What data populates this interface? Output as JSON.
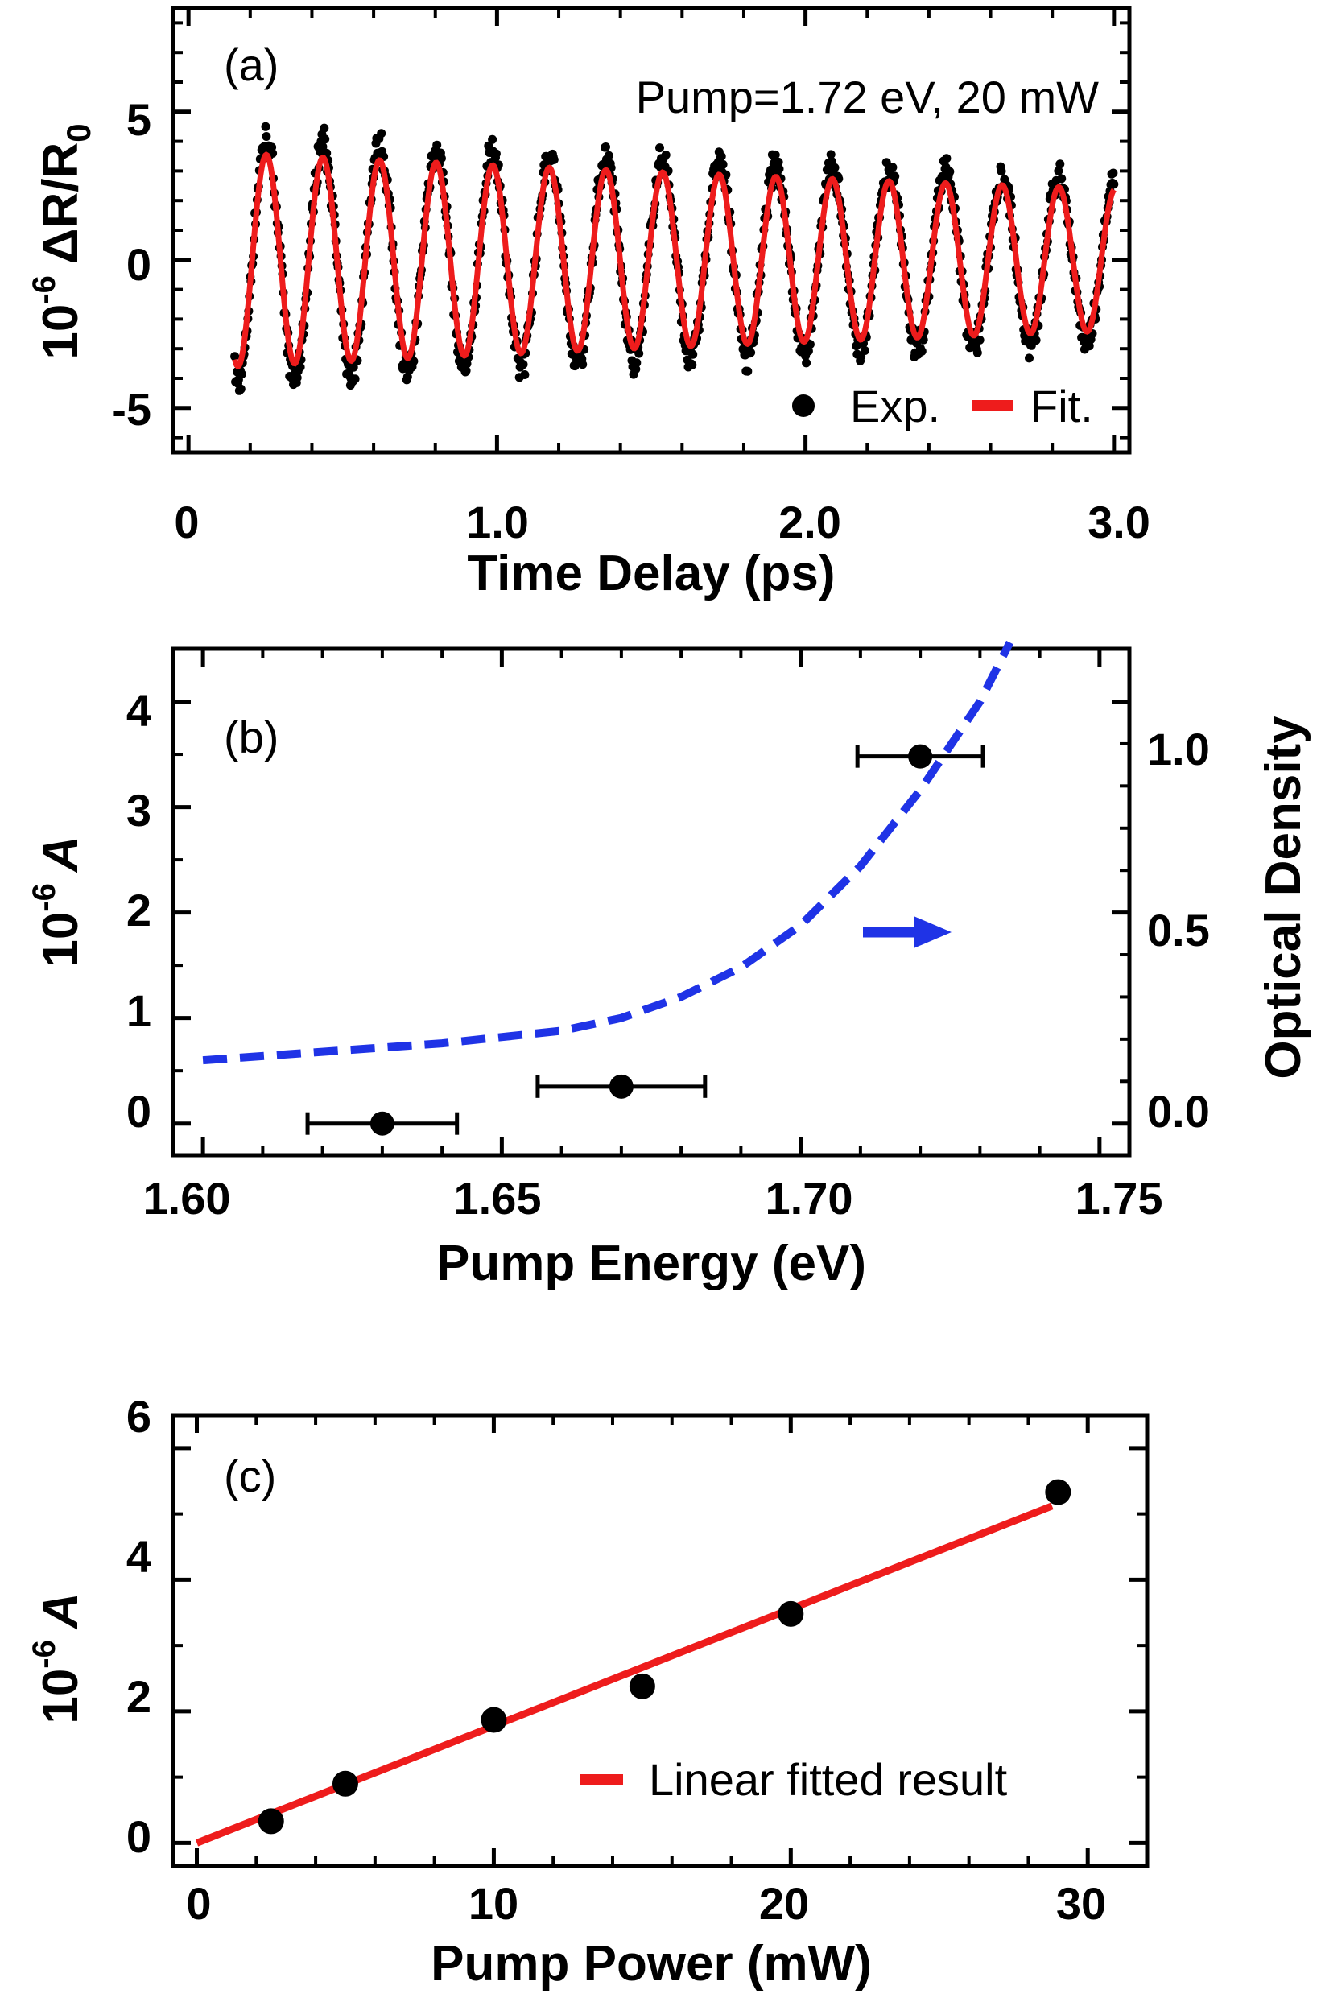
{
  "colors": {
    "exp": "#000000",
    "fit": "#ee1c1c",
    "od": "#1f33e6",
    "axis": "#000000"
  },
  "chart_data": [
    {
      "panel": "(a)",
      "type": "line",
      "xlabel": "Time Delay (ps)",
      "ylabel_base": "10",
      "ylabel_exp": "-6",
      "ylabel_main": "ΔR/R",
      "ylabel_sub": "0",
      "xlim": [
        -0.05,
        3.05
      ],
      "ylim": [
        -6.5,
        8.5
      ],
      "xticks": [
        0,
        1.0,
        2.0,
        3.0
      ],
      "xtick_labels": [
        "0",
        "1.0",
        "2.0",
        "3.0"
      ],
      "yticks": [
        -5,
        0,
        5
      ],
      "ytick_labels": [
        "-5",
        "0",
        "5"
      ],
      "annotation": "Pump=1.72 eV, 20 mW",
      "legend": {
        "placement": "bottom-right",
        "entries": [
          "Exp.",
          "Fit."
        ]
      },
      "series": [
        {
          "name": "Exp.",
          "kind": "scatter",
          "x_range": [
            0.15,
            3.0
          ],
          "model": {
            "amplitude": 3.6,
            "decay_ps": 7.0,
            "frequency_thz": 5.45,
            "phase_deg": -45
          }
        },
        {
          "name": "Fit.",
          "kind": "line",
          "x_range": [
            0.15,
            3.0
          ],
          "model": {
            "amplitude": 3.6,
            "decay_ps": 7.0,
            "frequency_thz": 5.45,
            "phase_deg": -45
          }
        }
      ]
    },
    {
      "panel": "(b)",
      "type": "scatter",
      "xlabel": "Pump Energy (eV)",
      "ylabel_base": "10",
      "ylabel_exp": "-6",
      "ylabel_main": "A",
      "y2label": "Optical Density",
      "xlim": [
        1.595,
        1.755
      ],
      "ylim": [
        -0.3,
        4.5
      ],
      "y2lim": [
        -0.075,
        1.125
      ],
      "xticks": [
        1.6,
        1.65,
        1.7,
        1.75
      ],
      "xtick_labels": [
        "1.60",
        "1.65",
        "1.70",
        "1.75"
      ],
      "yticks": [
        0,
        1,
        2,
        3,
        4
      ],
      "ytick_labels": [
        "0",
        "1",
        "2",
        "3",
        "4"
      ],
      "y2ticks": [
        0.0,
        0.5,
        1.0
      ],
      "y2tick_labels": [
        "0.0",
        "0.5",
        "1.0"
      ],
      "series": [
        {
          "name": "A",
          "kind": "points_xerr",
          "x": [
            1.63,
            1.67,
            1.72
          ],
          "y": [
            0.0,
            0.35,
            3.48
          ],
          "xerr": [
            0.0125,
            0.014,
            0.0105
          ]
        },
        {
          "name": "OD",
          "kind": "dashed_line_right_axis",
          "x": [
            1.6,
            1.62,
            1.64,
            1.66,
            1.67,
            1.68,
            1.69,
            1.7,
            1.71,
            1.72,
            1.73,
            1.735
          ],
          "y": [
            0.15,
            0.17,
            0.19,
            0.22,
            0.25,
            0.3,
            0.37,
            0.47,
            0.61,
            0.79,
            1.0,
            1.14
          ]
        }
      ]
    },
    {
      "panel": "(c)",
      "type": "scatter",
      "xlabel": "Pump Power (mW)",
      "ylabel_base": "10",
      "ylabel_exp": "-6",
      "ylabel_main": "A",
      "xlim": [
        -0.8,
        32
      ],
      "ylim": [
        -0.35,
        6.5
      ],
      "xticks": [
        0,
        10,
        20,
        30
      ],
      "xtick_labels": [
        "0",
        "10",
        "20",
        "30"
      ],
      "yticks": [
        0,
        2,
        4,
        6
      ],
      "ytick_labels": [
        "0",
        "2",
        "4",
        "6"
      ],
      "legend": {
        "placement": "bottom-right",
        "entries": [
          "Linear fitted result"
        ]
      },
      "series": [
        {
          "name": "data",
          "kind": "points",
          "x": [
            2.5,
            5,
            10,
            15,
            20,
            29
          ],
          "y": [
            0.33,
            0.9,
            1.87,
            2.38,
            3.48,
            5.33
          ]
        },
        {
          "name": "Linear fitted result",
          "kind": "line",
          "x": [
            0,
            28.8
          ],
          "y": [
            0.0,
            5.12
          ]
        }
      ]
    }
  ]
}
